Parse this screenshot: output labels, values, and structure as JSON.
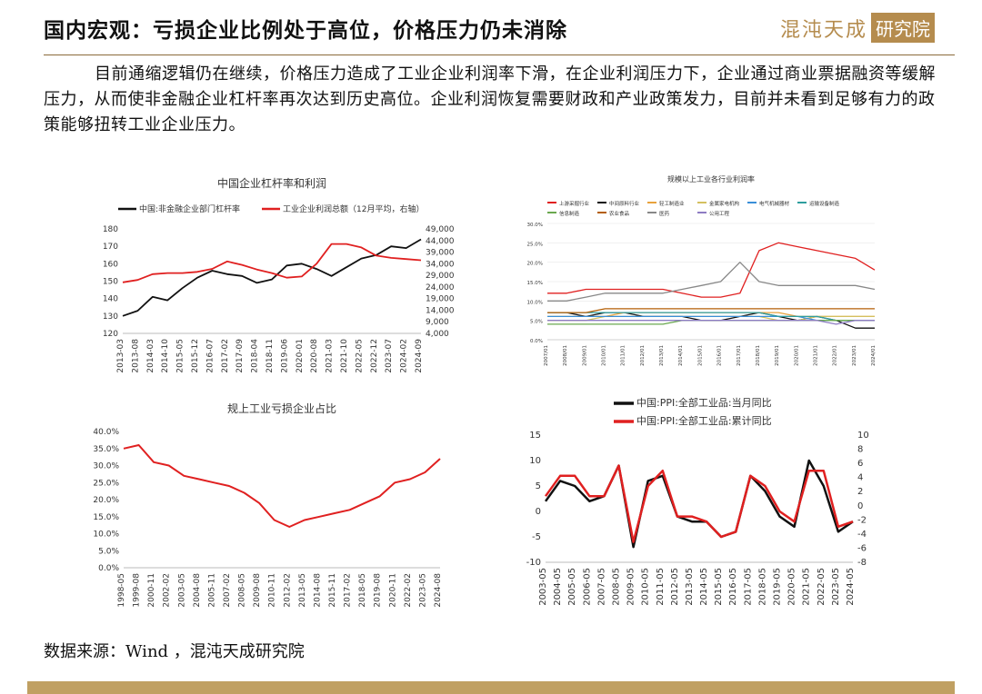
{
  "title": "国内宏观：亏损企业比例处于高位，价格压力仍未消除",
  "logo": {
    "text": "混沌天成",
    "box": "研究院"
  },
  "paragraph": "目前通缩逻辑仍在继续，价格压力造成了工业企业利润率下滑，在企业利润压力下，企业通过商业票据融资等缓解压力，从而使非金融企业杠杆率再次达到历史高位。企业利润恢复需要财政和产业政策发力，目前并未看到足够有力的政策能够扭转工业企业压力。",
  "source": "数据来源：Wind ，混沌天成研究院",
  "colors": {
    "red": "#e02020",
    "black": "#111111",
    "gold": "#c0a062"
  },
  "chart_data": [
    {
      "type": "line",
      "title": "中国企业杠杆率和利润",
      "x": [
        "2013-03",
        "2013-08",
        "2014-03",
        "2014-10",
        "2015-05",
        "2015-12",
        "2016-07",
        "2017-02",
        "2017-09",
        "2018-04",
        "2018-11",
        "2019-06",
        "2020-01",
        "2020-08",
        "2021-03",
        "2021-10",
        "2022-05",
        "2022-12",
        "2023-07",
        "2024-02",
        "2024-09"
      ],
      "ylim": [
        120,
        180
      ],
      "yticks": [
        120,
        130,
        140,
        150,
        160,
        170,
        180
      ],
      "y2lim": [
        4000,
        49000
      ],
      "y2ticks": [
        "4,000",
        "9,000",
        "14,000",
        "19,000",
        "24,000",
        "29,000",
        "34,000",
        "39,000",
        "44,000",
        "49,000"
      ],
      "series": [
        {
          "name": "中国:非金融企业部门杠杆率",
          "axis": "left",
          "color": "#111111",
          "values": [
            130,
            133,
            141,
            139,
            146,
            152,
            156,
            154,
            153,
            149,
            151,
            159,
            160,
            157,
            153,
            158,
            163,
            165,
            170,
            169,
            174
          ]
        },
        {
          "name": "工业企业利润总额（12月平均，右轴）",
          "axis": "right",
          "color": "#e02020",
          "values": [
            26000,
            27000,
            29500,
            30000,
            30000,
            30500,
            31800,
            35000,
            33500,
            31500,
            30000,
            28000,
            28500,
            34000,
            42500,
            42500,
            41000,
            37500,
            36500,
            36000,
            35500
          ]
        }
      ]
    },
    {
      "type": "line",
      "title": "规模以上工业各行业利润率",
      "x": [
        "2007/01",
        "2008/01",
        "2009/01",
        "2010/01",
        "2011/01",
        "2012/01",
        "2013/01",
        "2014/01",
        "2015/01",
        "2016/01",
        "2017/01",
        "2018/01",
        "2019/01",
        "2020/01",
        "2021/01",
        "2022/01",
        "2023/01",
        "2024/01"
      ],
      "ylim": [
        0,
        30
      ],
      "yticks": [
        "0.0%",
        "5.0%",
        "10.0%",
        "15.0%",
        "20.0%",
        "25.0%",
        "30.0%"
      ],
      "series": [
        {
          "name": "上游采掘行业",
          "color": "#e02020",
          "values": [
            12,
            12,
            13,
            13,
            13,
            13,
            13,
            12,
            11,
            11,
            12,
            23,
            25,
            24,
            23,
            22,
            21,
            18
          ]
        },
        {
          "name": "中间原料行业",
          "color": "#111111",
          "values": [
            7,
            7,
            6,
            7,
            7,
            6,
            6,
            6,
            5,
            5,
            6,
            7,
            6,
            5,
            6,
            5,
            3,
            3
          ]
        },
        {
          "name": "轻工制造业",
          "color": "#e8a23c",
          "values": [
            6,
            6,
            6,
            6,
            7,
            7,
            7,
            7,
            7,
            7,
            7,
            7,
            7,
            6,
            6,
            6,
            6,
            6
          ]
        },
        {
          "name": "金属家电机构",
          "color": "#d4c060",
          "values": [
            5,
            5,
            5,
            6,
            6,
            6,
            6,
            6,
            6,
            6,
            6,
            6,
            5,
            5,
            6,
            6,
            6,
            6
          ]
        },
        {
          "name": "电气机械器材",
          "color": "#3a8fd8",
          "values": [
            6,
            6,
            6,
            6,
            6,
            6,
            6,
            6,
            6,
            6,
            6,
            6,
            6,
            6,
            5,
            5,
            5,
            5
          ]
        },
        {
          "name": "运输设备制造",
          "color": "#2e9e9e",
          "values": [
            7,
            7,
            7,
            7,
            7,
            7,
            7,
            7,
            7,
            7,
            7,
            7,
            6,
            6,
            6,
            5,
            5,
            5
          ]
        },
        {
          "name": "信息制造",
          "color": "#6aa84f",
          "values": [
            4,
            4,
            4,
            4,
            4,
            4,
            4,
            5,
            5,
            5,
            5,
            5,
            5,
            5,
            5,
            5,
            5,
            5
          ]
        },
        {
          "name": "农业食品",
          "color": "#b45f06",
          "values": [
            7,
            7,
            7,
            8,
            8,
            8,
            8,
            8,
            8,
            8,
            8,
            8,
            8,
            8,
            8,
            8,
            8,
            8
          ]
        },
        {
          "name": "医药",
          "color": "#888888",
          "values": [
            10,
            10,
            11,
            12,
            12,
            12,
            12,
            13,
            14,
            15,
            20,
            15,
            14,
            14,
            14,
            14,
            14,
            13
          ]
        },
        {
          "name": "公用工程",
          "color": "#8e7cc3",
          "values": [
            5,
            5,
            5,
            5,
            5,
            5,
            5,
            5,
            5,
            5,
            5,
            5,
            5,
            5,
            5,
            4,
            5,
            5
          ]
        }
      ]
    },
    {
      "type": "line",
      "title": "规上工业亏损企业占比",
      "x": [
        "1998-05",
        "1999-08",
        "2000-11",
        "2002-02",
        "2003-05",
        "2004-08",
        "2005-11",
        "2007-02",
        "2008-05",
        "2009-08",
        "2010-11",
        "2012-02",
        "2013-05",
        "2014-08",
        "2015-11",
        "2017-02",
        "2018-05",
        "2019-08",
        "2020-11",
        "2022-02",
        "2023-05",
        "2024-08"
      ],
      "ylim": [
        0,
        40
      ],
      "yticks": [
        "0.0%",
        "5.0%",
        "10.0%",
        "15.0%",
        "20.0%",
        "25.0%",
        "30.0%",
        "35.0%",
        "40.0%"
      ],
      "series": [
        {
          "name": "亏损企业占比",
          "color": "#e02020",
          "values": [
            35,
            36,
            31,
            30,
            27,
            26,
            25,
            24,
            22,
            19,
            14,
            12,
            14,
            15,
            16,
            17,
            19,
            21,
            25,
            26,
            28,
            32
          ]
        }
      ]
    },
    {
      "type": "line",
      "title": "",
      "x": [
        "2003-05",
        "2004-05",
        "2005-05",
        "2006-05",
        "2007-05",
        "2008-05",
        "2009-05",
        "2010-05",
        "2011-05",
        "2012-05",
        "2013-05",
        "2014-05",
        "2015-05",
        "2016-05",
        "2017-05",
        "2018-05",
        "2019-05",
        "2020-05",
        "2021-05",
        "2022-05",
        "2023-05",
        "2024-05"
      ],
      "ylim": [
        -10,
        15
      ],
      "yticks": [
        -10,
        -5,
        0,
        5,
        10,
        15
      ],
      "y2lim": [
        -8,
        10
      ],
      "y2ticks": [
        -8,
        -6,
        -4,
        -2,
        0,
        2,
        4,
        6,
        8,
        10
      ],
      "series": [
        {
          "name": "中国:PPI:全部工业品:当月同比",
          "color": "#111111",
          "values": [
            2,
            6,
            5,
            2,
            3,
            9,
            -7,
            6,
            7,
            -1,
            -2,
            -2,
            -5,
            -4,
            7,
            4,
            -1,
            -3,
            10,
            5,
            -4,
            -2
          ]
        },
        {
          "name": "中国:PPI:全部工业品:累计同比",
          "color": "#e02020",
          "values": [
            3,
            7,
            7,
            3,
            3,
            9,
            -6,
            5,
            8,
            -1,
            -1,
            -2,
            -5,
            -4,
            7,
            5,
            0,
            -2,
            8,
            8,
            -3,
            -2
          ]
        }
      ]
    }
  ]
}
